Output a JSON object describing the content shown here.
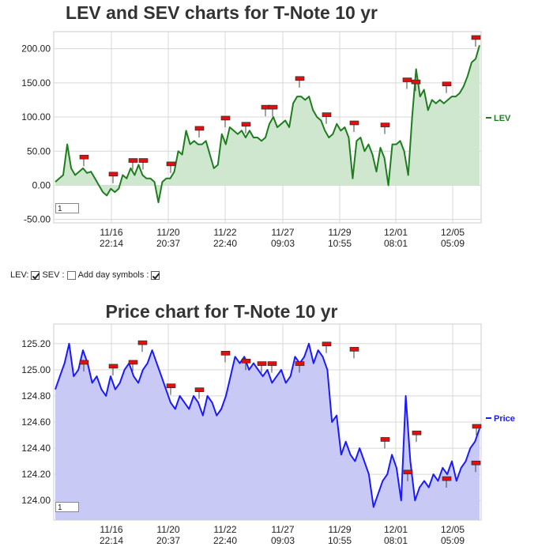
{
  "chart_data": [
    {
      "type": "area",
      "title": "LEV and SEV charts for T-Note 10 yr",
      "ylim": [
        -55,
        225
      ],
      "yticks": [
        "200.00",
        "150.00",
        "100.00",
        "50.00",
        "0.00",
        "-50.00"
      ],
      "ytick_values": [
        200,
        150,
        100,
        50,
        0,
        -50
      ],
      "xticks": [
        {
          "date": "11/16",
          "time": "22:14"
        },
        {
          "date": "11/20",
          "time": "20:37"
        },
        {
          "date": "11/22",
          "time": "22:40"
        },
        {
          "date": "11/27",
          "time": "09:03"
        },
        {
          "date": "11/29",
          "time": "10:55"
        },
        {
          "date": "12/01",
          "time": "08:01"
        },
        {
          "date": "12/05",
          "time": "05:09"
        }
      ],
      "grid": true,
      "legend": "right",
      "series": [
        {
          "name": "LEV",
          "color": "#1e7d1e",
          "fill": "#cfe6cf",
          "values": [
            5,
            10,
            15,
            60,
            25,
            15,
            20,
            25,
            18,
            20,
            10,
            0,
            -10,
            -15,
            -5,
            -10,
            -5,
            15,
            10,
            25,
            15,
            30,
            15,
            10,
            10,
            5,
            -25,
            5,
            10,
            10,
            20,
            50,
            45,
            80,
            60,
            65,
            60,
            60,
            65,
            45,
            25,
            30,
            75,
            60,
            85,
            80,
            75,
            80,
            70,
            80,
            70,
            70,
            65,
            70,
            90,
            100,
            85,
            90,
            95,
            85,
            120,
            130,
            130,
            125,
            130,
            110,
            100,
            95,
            80,
            70,
            75,
            90,
            80,
            85,
            70,
            10,
            65,
            70,
            50,
            60,
            45,
            20,
            55,
            40,
            0,
            60,
            60,
            65,
            50,
            15,
            100,
            170,
            130,
            140,
            110,
            125,
            120,
            125,
            120,
            125,
            130,
            130,
            135,
            145,
            160,
            180,
            185,
            205
          ]
        }
      ],
      "markers": [
        35,
        10,
        30,
        30,
        25,
        77,
        92,
        83,
        108,
        108,
        150,
        97,
        85,
        82,
        148,
        145,
        142,
        210
      ]
    },
    {
      "type": "area",
      "title": "Price chart for T-Note 10 yr",
      "ylim": [
        123.85,
        125.35
      ],
      "yticks": [
        "125.20",
        "125.00",
        "124.80",
        "124.60",
        "124.40",
        "124.20",
        "124.00"
      ],
      "ytick_values": [
        125.2,
        125.0,
        124.8,
        124.6,
        124.4,
        124.2,
        124.0
      ],
      "xticks": [
        {
          "date": "11/16",
          "time": "22:14"
        },
        {
          "date": "11/20",
          "time": "20:37"
        },
        {
          "date": "11/22",
          "time": "22:40"
        },
        {
          "date": "11/27",
          "time": "09:03"
        },
        {
          "date": "11/29",
          "time": "10:55"
        },
        {
          "date": "12/01",
          "time": "08:01"
        },
        {
          "date": "12/05",
          "time": "05:09"
        }
      ],
      "grid": true,
      "legend": "right",
      "series": [
        {
          "name": "Price",
          "color": "#1a1aff",
          "fill": "#c9c9f5",
          "values": [
            124.85,
            124.95,
            125.05,
            125.2,
            124.95,
            125.0,
            125.15,
            125.05,
            124.9,
            124.95,
            124.85,
            124.8,
            124.95,
            124.85,
            124.9,
            125.0,
            125.05,
            124.95,
            124.9,
            125.0,
            125.05,
            125.15,
            125.05,
            124.95,
            124.85,
            124.75,
            124.7,
            124.8,
            124.75,
            124.7,
            124.8,
            124.75,
            124.65,
            124.8,
            124.75,
            124.65,
            124.7,
            124.8,
            124.95,
            125.1,
            125.05,
            125.1,
            125.0,
            125.05,
            125.0,
            124.95,
            125.0,
            124.9,
            124.95,
            125.0,
            124.9,
            124.95,
            125.1,
            125.05,
            125.1,
            125.2,
            125.05,
            125.15,
            125.1,
            125.0,
            124.6,
            124.65,
            124.35,
            124.45,
            124.35,
            124.3,
            124.4,
            124.3,
            124.2,
            123.95,
            124.05,
            124.15,
            124.2,
            124.35,
            124.25,
            124.0,
            124.8,
            124.3,
            124.0,
            124.1,
            124.15,
            124.1,
            124.2,
            124.15,
            124.25,
            124.2,
            124.3,
            124.15,
            124.25,
            124.3,
            124.4,
            124.45,
            124.55
          ]
        }
      ],
      "markers": [
        125.03,
        125.0,
        125.03,
        125.18,
        124.85,
        124.82,
        125.1,
        125.04,
        125.02,
        125.02,
        125.02,
        125.17,
        125.13,
        124.44,
        124.19,
        124.49,
        124.14,
        124.26,
        124.54
      ]
    }
  ],
  "controls": {
    "lev_label": "LEV:",
    "sev_label": "SEV :",
    "day_symbols_label": "Add day symbols :",
    "lev_checked": true,
    "sev_checked": false,
    "day_symbols_checked": true
  },
  "zoom": {
    "lev_value": "1",
    "price_value": "1"
  }
}
